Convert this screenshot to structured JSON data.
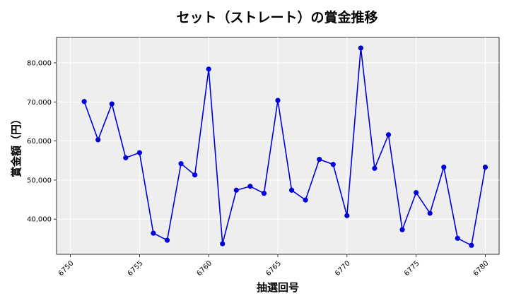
{
  "chart_data": {
    "type": "line",
    "title": "セット（ストレート）の賞金推移",
    "xlabel": "抽選回号",
    "ylabel": "賞金額（円）",
    "xlim": [
      6749,
      6781
    ],
    "ylim": [
      31000,
      86500
    ],
    "x_ticks": [
      6750,
      6755,
      6760,
      6765,
      6770,
      6775,
      6780
    ],
    "y_ticks": [
      40000,
      50000,
      60000,
      70000,
      80000
    ],
    "y_tick_labels": [
      "40,000",
      "50,000",
      "60,000",
      "70,000",
      "80,000"
    ],
    "grid": true,
    "series": [
      {
        "color": "#0000dd",
        "x": [
          6751,
          6752,
          6753,
          6754,
          6755,
          6756,
          6757,
          6758,
          6759,
          6760,
          6761,
          6762,
          6763,
          6764,
          6765,
          6766,
          6767,
          6768,
          6769,
          6770,
          6771,
          6772,
          6773,
          6774,
          6775,
          6776,
          6777,
          6778,
          6779,
          6780
        ],
        "values": [
          70100,
          60300,
          69500,
          55700,
          57000,
          36400,
          34600,
          54200,
          51300,
          78400,
          33700,
          47400,
          48400,
          46600,
          70400,
          47400,
          44900,
          55300,
          54000,
          40900,
          83800,
          53000,
          61600,
          37300,
          46800,
          41500,
          53300,
          35100,
          33300,
          53300
        ]
      }
    ]
  }
}
